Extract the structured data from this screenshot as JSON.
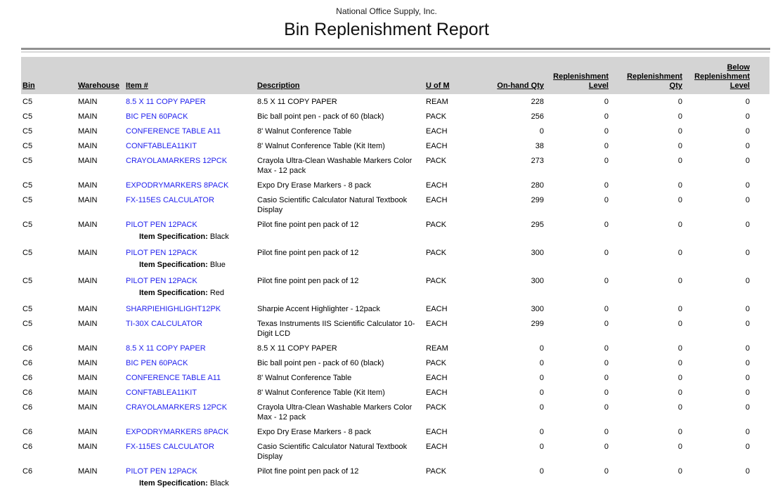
{
  "report": {
    "company": "National Office Supply, Inc.",
    "title": "Bin Replenishment Report"
  },
  "colors": {
    "link_blue": "#2222ee",
    "header_band_gray": "#d4d4d4",
    "rule_dark_gray": "#919191",
    "rule_light_gray": "#d8d8d8"
  },
  "table": {
    "spec_label": "Item Specification:",
    "columns": [
      {
        "key": "bin",
        "label": "Bin",
        "align": "left"
      },
      {
        "key": "warehouse",
        "label": "Warehouse",
        "align": "left"
      },
      {
        "key": "item",
        "label": "Item #",
        "align": "left"
      },
      {
        "key": "description",
        "label": "Description",
        "align": "left"
      },
      {
        "key": "uom",
        "label": "U of M",
        "align": "left"
      },
      {
        "key": "onhand",
        "label": "On-hand Qty",
        "align": "right"
      },
      {
        "key": "level",
        "label": "Replenishment\nLevel",
        "align": "right"
      },
      {
        "key": "qty",
        "label": "Replenishment\nQty",
        "align": "right"
      },
      {
        "key": "below",
        "label": "Below\nReplenishment\nLevel",
        "align": "right"
      }
    ],
    "rows": [
      {
        "bin": "C5",
        "warehouse": "MAIN",
        "item": "8.5 X 11 COPY PAPER",
        "description": "8.5 X 11 COPY PAPER",
        "uom": "REAM",
        "onhand": "228",
        "level": "0",
        "qty": "0",
        "below": "0"
      },
      {
        "bin": "C5",
        "warehouse": "MAIN",
        "item": "BIC PEN 60PACK",
        "description": "Bic ball point pen - pack of 60 (black)",
        "uom": "PACK",
        "onhand": "256",
        "level": "0",
        "qty": "0",
        "below": "0"
      },
      {
        "bin": "C5",
        "warehouse": "MAIN",
        "item": "CONFERENCE TABLE A11",
        "description": "8' Walnut Conference Table",
        "uom": "EACH",
        "onhand": "0",
        "level": "0",
        "qty": "0",
        "below": "0"
      },
      {
        "bin": "C5",
        "warehouse": "MAIN",
        "item": "CONFTABLEA11KIT",
        "description": "8' Walnut Conference Table (Kit Item)",
        "uom": "EACH",
        "onhand": "38",
        "level": "0",
        "qty": "0",
        "below": "0"
      },
      {
        "bin": "C5",
        "warehouse": "MAIN",
        "item": "CRAYOLAMARKERS 12PCK",
        "description": "Crayola Ultra-Clean Washable Markers Color Max - 12 pack",
        "uom": "PACK",
        "onhand": "273",
        "level": "0",
        "qty": "0",
        "below": "0"
      },
      {
        "bin": "C5",
        "warehouse": "MAIN",
        "item": "EXPODRYMARKERS 8PACK",
        "description": "Expo Dry Erase Markers - 8 pack",
        "uom": "EACH",
        "onhand": "280",
        "level": "0",
        "qty": "0",
        "below": "0"
      },
      {
        "bin": "C5",
        "warehouse": "MAIN",
        "item": "FX-115ES CALCULATOR",
        "description": "Casio Scientific Calculator Natural Textbook Display",
        "uom": "EACH",
        "onhand": "299",
        "level": "0",
        "qty": "0",
        "below": "0"
      },
      {
        "bin": "C5",
        "warehouse": "MAIN",
        "item": "PILOT PEN 12PACK",
        "description": "Pilot fine point pen pack of 12",
        "uom": "PACK",
        "onhand": "295",
        "level": "0",
        "qty": "0",
        "below": "0",
        "spec": "Black"
      },
      {
        "bin": "C5",
        "warehouse": "MAIN",
        "item": "PILOT PEN 12PACK",
        "description": "Pilot fine point pen pack of 12",
        "uom": "PACK",
        "onhand": "300",
        "level": "0",
        "qty": "0",
        "below": "0",
        "spec": "Blue"
      },
      {
        "bin": "C5",
        "warehouse": "MAIN",
        "item": "PILOT PEN 12PACK",
        "description": "Pilot fine point pen pack of 12",
        "uom": "PACK",
        "onhand": "300",
        "level": "0",
        "qty": "0",
        "below": "0",
        "spec": "Red"
      },
      {
        "bin": "C5",
        "warehouse": "MAIN",
        "item": "SHARPIEHIGHLIGHT12PK",
        "description": "Sharpie Accent Highlighter - 12pack",
        "uom": "EACH",
        "onhand": "300",
        "level": "0",
        "qty": "0",
        "below": "0"
      },
      {
        "bin": "C5",
        "warehouse": "MAIN",
        "item": "TI-30X CALCULATOR",
        "description": "Texas Instruments IIS Scientific Calculator 10-Digit LCD",
        "uom": "EACH",
        "onhand": "299",
        "level": "0",
        "qty": "0",
        "below": "0"
      },
      {
        "bin": "C6",
        "warehouse": "MAIN",
        "item": "8.5 X 11 COPY PAPER",
        "description": "8.5 X 11 COPY PAPER",
        "uom": "REAM",
        "onhand": "0",
        "level": "0",
        "qty": "0",
        "below": "0"
      },
      {
        "bin": "C6",
        "warehouse": "MAIN",
        "item": "BIC PEN 60PACK",
        "description": "Bic ball point pen - pack of 60 (black)",
        "uom": "PACK",
        "onhand": "0",
        "level": "0",
        "qty": "0",
        "below": "0"
      },
      {
        "bin": "C6",
        "warehouse": "MAIN",
        "item": "CONFERENCE TABLE A11",
        "description": "8' Walnut Conference Table",
        "uom": "EACH",
        "onhand": "0",
        "level": "0",
        "qty": "0",
        "below": "0"
      },
      {
        "bin": "C6",
        "warehouse": "MAIN",
        "item": "CONFTABLEA11KIT",
        "description": "8' Walnut Conference Table (Kit Item)",
        "uom": "EACH",
        "onhand": "0",
        "level": "0",
        "qty": "0",
        "below": "0"
      },
      {
        "bin": "C6",
        "warehouse": "MAIN",
        "item": "CRAYOLAMARKERS 12PCK",
        "description": "Crayola Ultra-Clean Washable Markers Color Max - 12 pack",
        "uom": "PACK",
        "onhand": "0",
        "level": "0",
        "qty": "0",
        "below": "0"
      },
      {
        "bin": "C6",
        "warehouse": "MAIN",
        "item": "EXPODRYMARKERS 8PACK",
        "description": "Expo Dry Erase Markers - 8 pack",
        "uom": "EACH",
        "onhand": "0",
        "level": "0",
        "qty": "0",
        "below": "0"
      },
      {
        "bin": "C6",
        "warehouse": "MAIN",
        "item": "FX-115ES CALCULATOR",
        "description": "Casio Scientific Calculator Natural Textbook Display",
        "uom": "EACH",
        "onhand": "0",
        "level": "0",
        "qty": "0",
        "below": "0"
      },
      {
        "bin": "C6",
        "warehouse": "MAIN",
        "item": "PILOT PEN 12PACK",
        "description": "Pilot fine point pen pack of 12",
        "uom": "PACK",
        "onhand": "0",
        "level": "0",
        "qty": "0",
        "below": "0",
        "spec": "Black"
      }
    ]
  }
}
